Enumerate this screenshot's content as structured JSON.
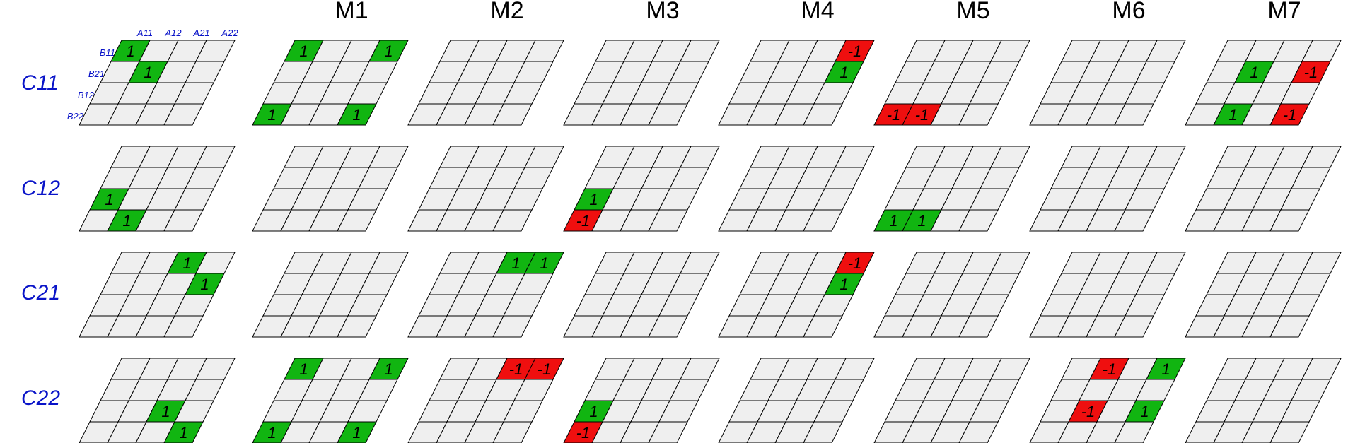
{
  "column_headers": [
    "M1",
    "M2",
    "M3",
    "M4",
    "M5",
    "M6",
    "M7"
  ],
  "row_headers": [
    "C11",
    "C12",
    "C21",
    "C22"
  ],
  "a_labels": [
    "A11",
    "A12",
    "A21",
    "A22"
  ],
  "b_labels": [
    "B11",
    "B21",
    "B12",
    "B22"
  ],
  "colors": {
    "cell_empty": "#efefef",
    "positive": "#11b511",
    "negative": "#ef0f0f",
    "grid_line": "#000000",
    "label_blue": "#0a14c8"
  },
  "grids": [
    [
      {
        "cells": [
          {
            "r": 0,
            "c": 0,
            "v": "1"
          },
          {
            "r": 1,
            "c": 1,
            "v": "1"
          }
        ]
      },
      {
        "cells": [
          {
            "r": 0,
            "c": 0,
            "v": "1"
          },
          {
            "r": 0,
            "c": 3,
            "v": "1"
          },
          {
            "r": 3,
            "c": 0,
            "v": "1"
          },
          {
            "r": 3,
            "c": 3,
            "v": "1"
          }
        ]
      },
      {
        "cells": []
      },
      {
        "cells": []
      },
      {
        "cells": [
          {
            "r": 0,
            "c": 3,
            "v": "-1"
          },
          {
            "r": 1,
            "c": 3,
            "v": "1"
          }
        ]
      },
      {
        "cells": [
          {
            "r": 3,
            "c": 0,
            "v": "-1"
          },
          {
            "r": 3,
            "c": 1,
            "v": "-1"
          }
        ]
      },
      {
        "cells": []
      },
      {
        "cells": [
          {
            "r": 1,
            "c": 1,
            "v": "1"
          },
          {
            "r": 1,
            "c": 3,
            "v": "-1"
          },
          {
            "r": 3,
            "c": 1,
            "v": "1"
          },
          {
            "r": 3,
            "c": 3,
            "v": "-1"
          }
        ]
      }
    ],
    [
      {
        "cells": [
          {
            "r": 2,
            "c": 0,
            "v": "1"
          },
          {
            "r": 3,
            "c": 1,
            "v": "1"
          }
        ]
      },
      {
        "cells": []
      },
      {
        "cells": []
      },
      {
        "cells": [
          {
            "r": 2,
            "c": 0,
            "v": "1"
          },
          {
            "r": 3,
            "c": 0,
            "v": "-1"
          }
        ]
      },
      {
        "cells": []
      },
      {
        "cells": [
          {
            "r": 3,
            "c": 0,
            "v": "1"
          },
          {
            "r": 3,
            "c": 1,
            "v": "1"
          }
        ]
      },
      {
        "cells": []
      },
      {
        "cells": []
      }
    ],
    [
      {
        "cells": [
          {
            "r": 0,
            "c": 2,
            "v": "1"
          },
          {
            "r": 1,
            "c": 3,
            "v": "1"
          }
        ]
      },
      {
        "cells": []
      },
      {
        "cells": [
          {
            "r": 0,
            "c": 2,
            "v": "1"
          },
          {
            "r": 0,
            "c": 3,
            "v": "1"
          }
        ]
      },
      {
        "cells": []
      },
      {
        "cells": [
          {
            "r": 0,
            "c": 3,
            "v": "-1"
          },
          {
            "r": 1,
            "c": 3,
            "v": "1"
          }
        ]
      },
      {
        "cells": []
      },
      {
        "cells": []
      },
      {
        "cells": []
      }
    ],
    [
      {
        "cells": [
          {
            "r": 2,
            "c": 2,
            "v": "1"
          },
          {
            "r": 3,
            "c": 3,
            "v": "1"
          }
        ]
      },
      {
        "cells": [
          {
            "r": 0,
            "c": 0,
            "v": "1"
          },
          {
            "r": 0,
            "c": 3,
            "v": "1"
          },
          {
            "r": 3,
            "c": 0,
            "v": "1"
          },
          {
            "r": 3,
            "c": 3,
            "v": "1"
          }
        ]
      },
      {
        "cells": [
          {
            "r": 0,
            "c": 2,
            "v": "-1"
          },
          {
            "r": 0,
            "c": 3,
            "v": "-1"
          }
        ]
      },
      {
        "cells": [
          {
            "r": 2,
            "c": 0,
            "v": "1"
          },
          {
            "r": 3,
            "c": 0,
            "v": "-1"
          }
        ]
      },
      {
        "cells": []
      },
      {
        "cells": []
      },
      {
        "cells": [
          {
            "r": 0,
            "c": 1,
            "v": "-1"
          },
          {
            "r": 0,
            "c": 3,
            "v": "1"
          },
          {
            "r": 2,
            "c": 1,
            "v": "-1"
          },
          {
            "r": 2,
            "c": 3,
            "v": "1"
          }
        ]
      },
      {
        "cells": []
      }
    ]
  ]
}
